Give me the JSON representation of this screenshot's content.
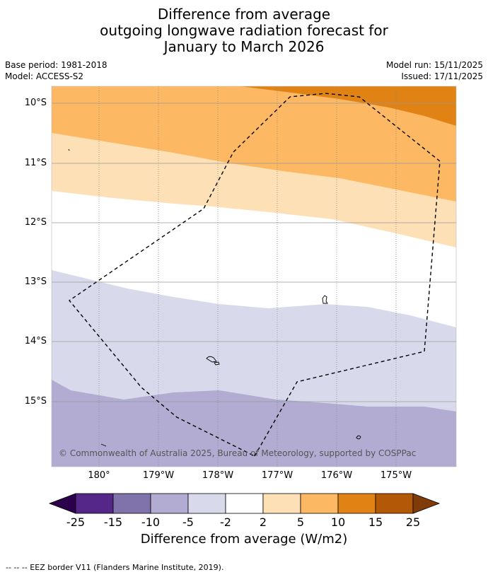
{
  "title": {
    "line1": "Difference from average",
    "line2": "outgoing longwave radiation forecast for",
    "line3": "January to March 2026"
  },
  "meta": {
    "base_period": "Base period: 1981-2018",
    "model": "Model: ACCESS-S2",
    "model_run": "Model run: 15/11/2025",
    "issued": "Issued: 17/11/2025"
  },
  "map": {
    "lat_labels": [
      "10°S",
      "11°S",
      "12°S",
      "13°S",
      "14°S",
      "15°S"
    ],
    "lon_labels": [
      "180°",
      "179°W",
      "178°W",
      "177°W",
      "176°W",
      "175°W"
    ],
    "copyright": "© Commonwealth of Australia 2025, Bureau of Meteorology, supported by COSPPac",
    "colors": {
      "strong_positive": "#e08214",
      "positive": "#fdb863",
      "weak_positive": "#fee0b6",
      "neutral": "#ffffff",
      "weak_negative": "#d8daeb",
      "negative": "#b2abd2"
    }
  },
  "colorbar": {
    "labels": [
      "-25",
      "-15",
      "-10",
      "-5",
      "-2",
      "2",
      "5",
      "10",
      "15",
      "25"
    ],
    "colors": [
      "#2d004b",
      "#542788",
      "#8073ac",
      "#b2abd2",
      "#d8daeb",
      "#ffffff",
      "#fee0b6",
      "#fdb863",
      "#e08214",
      "#b35806",
      "#7f3b08"
    ],
    "title": "Difference from average (W/m2)"
  },
  "footer": {
    "legend": "--  --  -- EEZ border V11 (Flanders Marine Institute, 2019)."
  }
}
